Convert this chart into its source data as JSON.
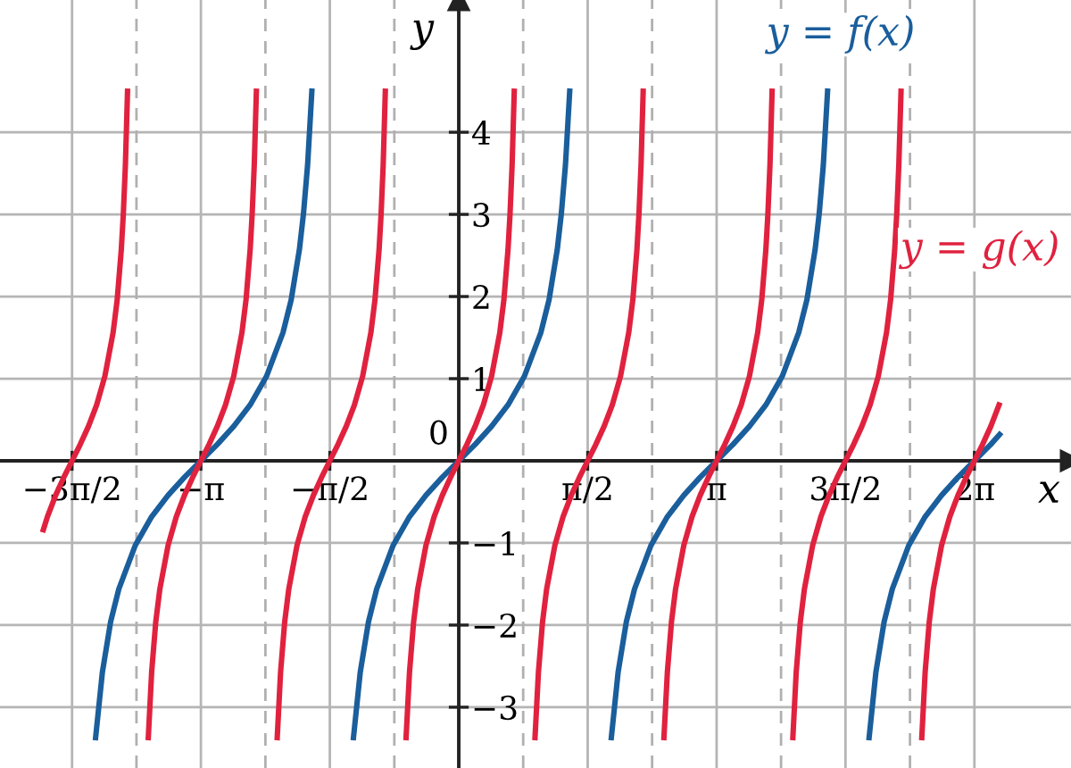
{
  "chart_data": {
    "type": "line",
    "xlabel": "x",
    "ylabel": "y",
    "xlim": [
      -5.59,
      7.46
    ],
    "ylim": [
      -3.74,
      5.61
    ],
    "xticks": [
      {
        "value": -4.712,
        "label": "−3π/2"
      },
      {
        "value": -3.142,
        "label": "−π"
      },
      {
        "value": -1.571,
        "label": "−π/2"
      },
      {
        "value": 1.571,
        "label": "π/2"
      },
      {
        "value": 3.142,
        "label": "π"
      },
      {
        "value": 4.712,
        "label": "3π/2"
      },
      {
        "value": 6.283,
        "label": "2π"
      }
    ],
    "yticks": [
      {
        "value": -3,
        "label": "−3"
      },
      {
        "value": -2,
        "label": "−2"
      },
      {
        "value": -1,
        "label": "−1"
      },
      1,
      2,
      3,
      4
    ],
    "annotations": [
      "0"
    ],
    "grid": true,
    "legend": false,
    "marker": "none",
    "line_style": "solid",
    "ref_lines": [
      {
        "axis": "x",
        "value": -3.927,
        "label": null,
        "color": "#b0b0b0",
        "line_style": "dashed"
      },
      {
        "axis": "x",
        "value": -2.356,
        "label": null,
        "color": "#b0b0b0",
        "line_style": "dashed"
      },
      {
        "axis": "x",
        "value": -0.785,
        "label": null,
        "color": "#b0b0b0",
        "line_style": "dashed"
      },
      {
        "axis": "x",
        "value": 0.785,
        "label": null,
        "color": "#b0b0b0",
        "line_style": "dashed"
      },
      {
        "axis": "x",
        "value": 2.356,
        "label": null,
        "color": "#b0b0b0",
        "line_style": "dashed"
      },
      {
        "axis": "x",
        "value": 3.927,
        "label": null,
        "color": "#b0b0b0",
        "line_style": "dashed"
      },
      {
        "axis": "x",
        "value": 5.498,
        "label": null,
        "color": "#b0b0b0",
        "line_style": "dashed"
      }
    ],
    "series": [
      {
        "name": "y = f(x)",
        "color": "#1a5e9c",
        "x": [
          -4.425,
          -4.342,
          -4.242,
          -4.142,
          -3.942,
          -3.742,
          -3.542,
          -3.342,
          -3.142,
          -2.942,
          -2.742,
          -2.542,
          -2.342,
          -2.142,
          -2.042,
          -1.942,
          -1.892,
          -1.842,
          -1.79,
          null,
          -1.283,
          -1.2,
          -1.1,
          -1.0,
          -0.8,
          -0.6,
          -0.4,
          -0.2,
          0,
          0.2,
          0.4,
          0.6,
          0.8,
          1.0,
          1.1,
          1.2,
          1.25,
          1.3,
          1.352,
          null,
          1.859,
          1.942,
          2.042,
          2.142,
          2.342,
          2.542,
          2.742,
          2.942,
          3.142,
          3.342,
          3.542,
          3.742,
          3.942,
          4.142,
          4.242,
          4.342,
          4.392,
          4.442,
          4.494,
          null,
          5.0,
          5.083,
          5.183,
          5.283,
          5.483,
          5.683,
          5.883,
          6.083,
          6.283,
          6.483,
          6.59
        ],
        "values": [
          -3.37,
          -2.57,
          -1.96,
          -1.56,
          -1.03,
          -0.68,
          -0.42,
          -0.2,
          0,
          0.2,
          0.42,
          0.68,
          1.03,
          1.56,
          1.96,
          2.57,
          3.01,
          3.6,
          4.5,
          null,
          -3.37,
          -2.57,
          -1.96,
          -1.56,
          -1.03,
          -0.68,
          -0.42,
          -0.2,
          0,
          0.2,
          0.42,
          0.68,
          1.03,
          1.56,
          1.96,
          2.57,
          3.01,
          3.6,
          4.5,
          null,
          -3.37,
          -2.57,
          -1.96,
          -1.56,
          -1.03,
          -0.68,
          -0.42,
          -0.2,
          0,
          0.2,
          0.42,
          0.68,
          1.03,
          1.56,
          1.96,
          2.57,
          3.01,
          3.6,
          4.5,
          null,
          -3.37,
          -2.57,
          -1.96,
          -1.56,
          -1.03,
          -0.68,
          -0.42,
          -0.2,
          0,
          0.2,
          0.32
        ]
      },
      {
        "name": "y = g(x)",
        "color": "#e0223f",
        "x": [
          -5.062,
          -5.012,
          -4.912,
          -4.812,
          -4.712,
          -4.612,
          -4.512,
          -4.412,
          -4.312,
          -4.212,
          -4.162,
          -4.112,
          -4.087,
          -4.062,
          -4.036,
          null,
          -3.783,
          -3.742,
          -3.692,
          -3.642,
          -3.542,
          -3.442,
          -3.342,
          -3.242,
          -3.142,
          -3.042,
          -2.942,
          -2.842,
          -2.742,
          -2.642,
          -2.592,
          -2.542,
          -2.517,
          -2.492,
          -2.466,
          null,
          -2.212,
          -2.171,
          -2.121,
          -2.071,
          -1.971,
          -1.871,
          -1.771,
          -1.671,
          -1.571,
          -1.471,
          -1.371,
          -1.271,
          -1.171,
          -1.071,
          -1.021,
          -0.971,
          -0.946,
          -0.921,
          -0.895,
          null,
          -0.642,
          -0.6,
          -0.55,
          -0.5,
          -0.4,
          -0.3,
          -0.2,
          -0.1,
          0,
          0.1,
          0.2,
          0.3,
          0.4,
          0.5,
          0.55,
          0.6,
          0.625,
          0.65,
          0.676,
          null,
          0.929,
          0.971,
          1.021,
          1.071,
          1.171,
          1.271,
          1.371,
          1.471,
          1.571,
          1.671,
          1.771,
          1.871,
          1.971,
          2.071,
          2.121,
          2.171,
          2.196,
          2.221,
          2.247,
          null,
          2.5,
          2.542,
          2.592,
          2.642,
          2.742,
          2.842,
          2.942,
          3.042,
          3.142,
          3.242,
          3.342,
          3.442,
          3.542,
          3.642,
          3.692,
          3.742,
          3.767,
          3.792,
          3.818,
          null,
          4.071,
          4.112,
          4.162,
          4.212,
          4.312,
          4.412,
          4.512,
          4.612,
          4.712,
          4.812,
          4.912,
          5.012,
          5.112,
          5.212,
          5.262,
          5.312,
          5.337,
          5.362,
          5.389,
          null,
          5.642,
          5.683,
          5.733,
          5.783,
          5.883,
          5.983,
          6.083,
          6.183,
          6.283,
          6.383,
          6.483,
          6.583
        ],
        "values": [
          -0.84,
          -0.68,
          -0.42,
          -0.2,
          0,
          0.2,
          0.42,
          0.68,
          1.03,
          1.56,
          1.96,
          2.57,
          3.01,
          3.6,
          4.5,
          null,
          -3.37,
          -2.57,
          -1.96,
          -1.56,
          -1.03,
          -0.68,
          -0.42,
          -0.2,
          0,
          0.2,
          0.42,
          0.68,
          1.03,
          1.56,
          1.96,
          2.57,
          3.01,
          3.6,
          4.5,
          null,
          -3.37,
          -2.57,
          -1.96,
          -1.56,
          -1.03,
          -0.68,
          -0.42,
          -0.2,
          0,
          0.2,
          0.42,
          0.68,
          1.03,
          1.56,
          1.96,
          2.57,
          3.01,
          3.6,
          4.5,
          null,
          -3.37,
          -2.57,
          -1.96,
          -1.56,
          -1.03,
          -0.68,
          -0.42,
          -0.2,
          0,
          0.2,
          0.42,
          0.68,
          1.03,
          1.56,
          1.96,
          2.57,
          3.01,
          3.6,
          4.5,
          null,
          -3.37,
          -2.57,
          -1.96,
          -1.56,
          -1.03,
          -0.68,
          -0.42,
          -0.2,
          0,
          0.2,
          0.42,
          0.68,
          1.03,
          1.56,
          1.96,
          2.57,
          3.01,
          3.6,
          4.5,
          null,
          -3.37,
          -2.57,
          -1.96,
          -1.56,
          -1.03,
          -0.68,
          -0.42,
          -0.2,
          0,
          0.2,
          0.42,
          0.68,
          1.03,
          1.56,
          1.96,
          2.57,
          3.01,
          3.6,
          4.5,
          null,
          -3.37,
          -2.57,
          -1.96,
          -1.56,
          -1.03,
          -0.68,
          -0.42,
          -0.2,
          0,
          0.2,
          0.42,
          0.68,
          1.03,
          1.56,
          1.96,
          2.57,
          3.01,
          3.6,
          4.5,
          null,
          -3.37,
          -2.57,
          -1.96,
          -1.56,
          -1.03,
          -0.68,
          -0.42,
          -0.2,
          0,
          0.2,
          0.42,
          0.68
        ]
      }
    ]
  }
}
